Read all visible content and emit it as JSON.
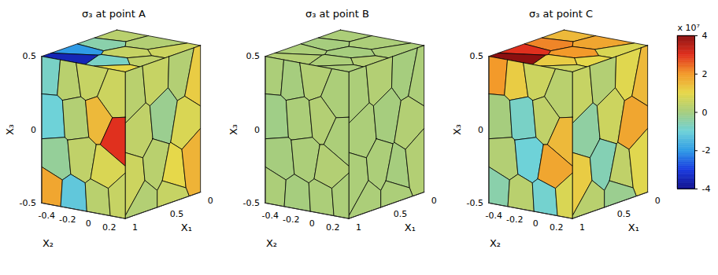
{
  "chart_data": [
    {
      "type": "surface",
      "title": "σ₃ at point A",
      "xlabel": "X₁",
      "ylabel": "X₂",
      "zlabel": "X₃",
      "xlim": [
        0,
        1
      ],
      "ylim": [
        -0.5,
        0.3
      ],
      "zlim": [
        -0.5,
        0.5
      ],
      "xticks": [
        0,
        0.5,
        1
      ],
      "yticks": [
        -0.4,
        -0.2,
        0,
        0.2
      ],
      "zticks": [
        -0.5,
        0,
        0.5
      ],
      "sigma": {
        "front": [
          -0.8,
          0.3,
          0.5,
          0.6,
          -1.0,
          0.2,
          1.5,
          3.0,
          -0.3,
          0.4,
          0.8,
          1.8,
          -1.2,
          0.3,
          0.5
        ],
        "top": [
          0.3,
          -0.5,
          -2.0,
          -3.5,
          0.2,
          0.5,
          -0.8,
          0.6,
          0.4,
          1.0
        ],
        "side": [
          0.3,
          0.5,
          0.2,
          1.2,
          0.4,
          -0.2,
          0.8,
          0.6,
          0.3,
          1.0,
          1.6,
          0.2,
          0.5
        ]
      }
    },
    {
      "type": "surface",
      "title": "σ₃ at point B",
      "xlabel": "X₁",
      "ylabel": "X₂",
      "zlabel": "X₃",
      "xlim": [
        0,
        1
      ],
      "ylim": [
        -0.5,
        0.3
      ],
      "zlim": [
        -0.5,
        0.5
      ],
      "xticks": [
        0,
        0.5,
        1
      ],
      "yticks": [
        -0.4,
        -0.2,
        0,
        0.2
      ],
      "zticks": [
        -0.5,
        0,
        0.5
      ],
      "sigma": {
        "front": [
          0.1,
          0.0,
          0.2,
          0.1,
          -0.1,
          0.1,
          0.2,
          0.1,
          0.0,
          0.1,
          0.2,
          0.1,
          0.0,
          0.1,
          0.1
        ],
        "top": [
          0.1,
          0.0,
          0.1,
          0.2,
          0.1,
          0.0,
          0.1,
          0.1,
          0.2,
          0.1
        ],
        "side": [
          0.1,
          0.2,
          0.0,
          0.1,
          0.1,
          0.0,
          0.2,
          0.1,
          0.1,
          0.0,
          0.2,
          0.1,
          0.1
        ]
      }
    },
    {
      "type": "surface",
      "title": "σ₃ at point C",
      "xlabel": "X₁",
      "ylabel": "X₂",
      "zlabel": "X₃",
      "xlim": [
        0,
        1
      ],
      "ylim": [
        -0.5,
        0.3
      ],
      "zlim": [
        -0.5,
        0.5
      ],
      "xticks": [
        0,
        0.5,
        1
      ],
      "yticks": [
        -0.4,
        -0.2,
        0,
        0.2
      ],
      "zticks": [
        -0.5,
        0,
        0.5
      ],
      "sigma": {
        "front": [
          2.0,
          1.2,
          0.6,
          0.3,
          0.0,
          -0.8,
          0.4,
          1.5,
          0.2,
          -1.0,
          1.8,
          -0.5,
          0.3,
          -0.9,
          0.8
        ],
        "top": [
          1.5,
          2.2,
          3.0,
          4.0,
          1.8,
          2.0,
          1.2,
          0.8,
          1.0,
          0.6
        ],
        "side": [
          0.5,
          0.2,
          0.9,
          1.5,
          -0.4,
          0.6,
          1.8,
          1.2,
          -0.6,
          0.4,
          0.9,
          0.3,
          -0.2
        ]
      }
    }
  ],
  "grains": {
    "front": [
      [
        -0.42,
        0.4
      ],
      [
        -0.25,
        0.38
      ],
      [
        -0.05,
        0.42
      ],
      [
        0.18,
        0.3
      ],
      [
        -0.4,
        0.1
      ],
      [
        -0.18,
        0.12
      ],
      [
        0.05,
        0.15
      ],
      [
        0.22,
        0.05
      ],
      [
        -0.35,
        -0.18
      ],
      [
        -0.12,
        -0.15
      ],
      [
        0.1,
        -0.2
      ],
      [
        -0.42,
        -0.4
      ],
      [
        -0.2,
        -0.42
      ],
      [
        0.05,
        -0.4
      ],
      [
        0.24,
        -0.38
      ]
    ],
    "top": [
      [
        0.15,
        -0.4
      ],
      [
        0.4,
        -0.35
      ],
      [
        0.7,
        -0.4
      ],
      [
        0.9,
        -0.3
      ],
      [
        0.2,
        -0.05
      ],
      [
        0.5,
        0.0
      ],
      [
        0.8,
        0.05
      ],
      [
        0.3,
        0.2
      ],
      [
        0.65,
        0.22
      ],
      [
        0.95,
        0.2
      ]
    ],
    "side": [
      [
        0.9,
        0.35
      ],
      [
        0.6,
        0.4
      ],
      [
        0.25,
        0.38
      ],
      [
        0.05,
        0.3
      ],
      [
        0.8,
        0.05
      ],
      [
        0.5,
        0.1
      ],
      [
        0.2,
        0.0
      ],
      [
        0.9,
        -0.25
      ],
      [
        0.6,
        -0.2
      ],
      [
        0.35,
        -0.3
      ],
      [
        0.1,
        -0.25
      ],
      [
        0.75,
        -0.45
      ],
      [
        0.4,
        -0.45
      ]
    ]
  },
  "colorbar": {
    "range": [
      -4,
      4
    ],
    "ticks": [
      -4,
      -2,
      0,
      2,
      4
    ],
    "label": "x 10⁷"
  }
}
